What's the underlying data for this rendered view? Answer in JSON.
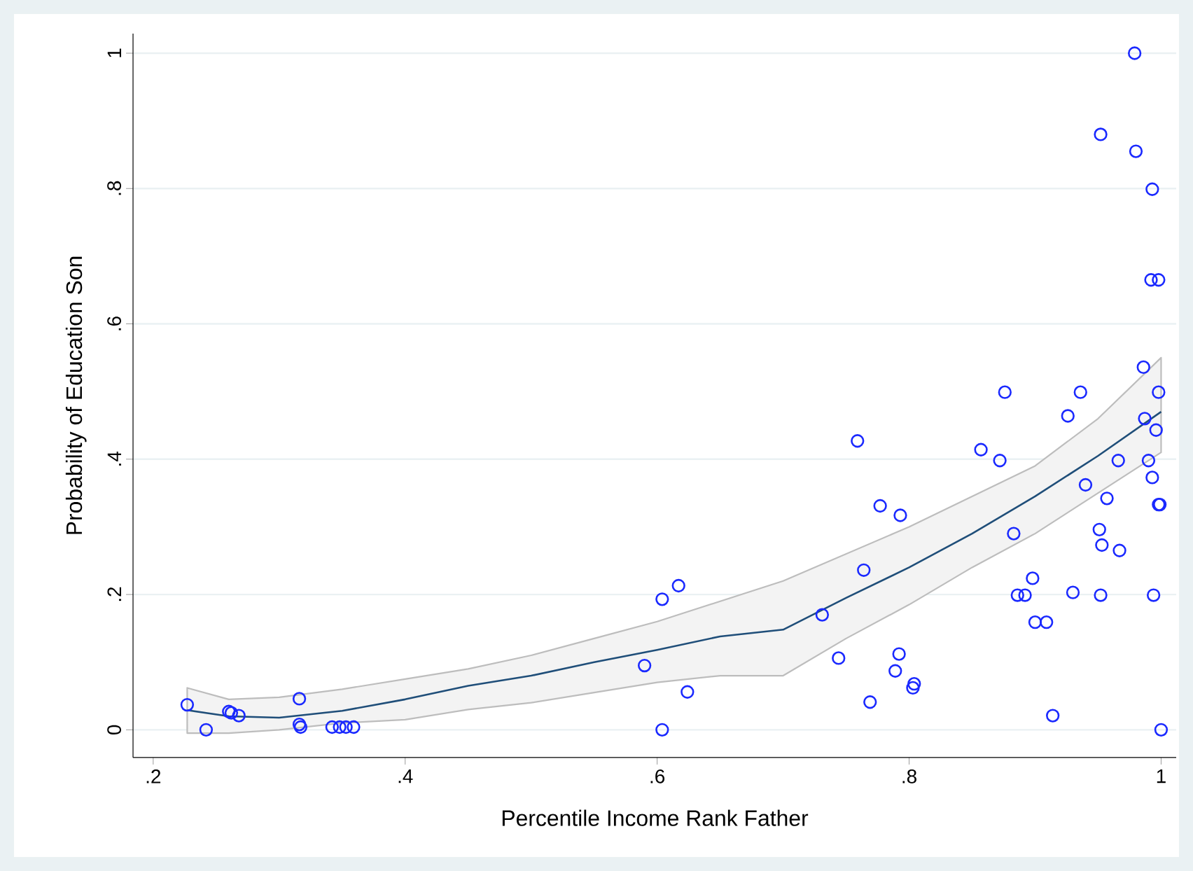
{
  "chart_data": {
    "type": "scatter",
    "xlabel": "Percentile Income Rank Father",
    "ylabel": "Probability of Education Son",
    "xlim": [
      0.184,
      1.012
    ],
    "ylim": [
      -0.041,
      1.029
    ],
    "xticks": [
      {
        "value": 0.2,
        "label": ".2"
      },
      {
        "value": 0.4,
        "label": ".4"
      },
      {
        "value": 0.6,
        "label": ".6"
      },
      {
        "value": 0.8,
        "label": ".8"
      },
      1
    ],
    "yticks": [
      0,
      {
        "value": 0.2,
        "label": ".2"
      },
      {
        "value": 0.4,
        "label": ".4"
      },
      {
        "value": 0.6,
        "label": ".6"
      },
      {
        "value": 0.8,
        "label": ".8"
      },
      1
    ],
    "grid": "y",
    "marker": "circle",
    "series": [
      {
        "color": "#1a29ff",
        "x": [
          0.227,
          0.242,
          0.26,
          0.262,
          0.268,
          0.316,
          0.316,
          0.317,
          0.342,
          0.348,
          0.353,
          0.359,
          0.759,
          0.777,
          0.793,
          0.764,
          0.617,
          0.604,
          0.731,
          0.59,
          0.744,
          0.792,
          0.789,
          0.804,
          0.803,
          0.624,
          0.769,
          0.604,
          0.857,
          0.986,
          0.876,
          0.936,
          0.998,
          0.926,
          0.987,
          0.996,
          0.872,
          0.966,
          0.99,
          0.993,
          0.94,
          0.957,
          0.998,
          0.999,
          0.883,
          0.951,
          0.953,
          0.967,
          0.898,
          0.886,
          0.892,
          0.93,
          0.952,
          0.994,
          0.9,
          0.909,
          0.914,
          1.0,
          0.979,
          0.952,
          0.98,
          0.993,
          0.992,
          0.998
        ],
        "values": [
          0.037,
          0,
          0.027,
          0.025,
          0.021,
          0.046,
          0.008,
          0.004,
          0.004,
          0.004,
          0.004,
          0.004,
          0.427,
          0.331,
          0.317,
          0.236,
          0.213,
          0.193,
          0.17,
          0.095,
          0.106,
          0.112,
          0.087,
          0.068,
          0.062,
          0.056,
          0.041,
          0,
          0.414,
          0.536,
          0.499,
          0.499,
          0.499,
          0.464,
          0.46,
          0.443,
          0.398,
          0.398,
          0.398,
          0.373,
          0.362,
          0.342,
          0.333,
          0.333,
          0.29,
          0.296,
          0.273,
          0.265,
          0.224,
          0.199,
          0.199,
          0.203,
          0.199,
          0.199,
          0.159,
          0.159,
          0.021,
          0,
          1,
          0.88,
          0.855,
          0.799,
          0.665,
          0.665
        ]
      },
      {
        "type": "line",
        "color": "#1f4e79",
        "marker": "none",
        "x": [
          0.227,
          0.26,
          0.3,
          0.35,
          0.4,
          0.45,
          0.5,
          0.55,
          0.6,
          0.65,
          0.7,
          0.75,
          0.8,
          0.85,
          0.9,
          0.95,
          1.0
        ],
        "values": [
          0.029,
          0.02,
          0.018,
          0.028,
          0.045,
          0.065,
          0.08,
          0.1,
          0.118,
          0.138,
          0.148,
          0.195,
          0.24,
          0.29,
          0.345,
          0.405,
          0.47
        ],
        "upper": [
          0.062,
          0.045,
          0.048,
          0.06,
          0.075,
          0.09,
          0.11,
          0.135,
          0.16,
          0.19,
          0.22,
          0.26,
          0.3,
          0.345,
          0.39,
          0.46,
          0.55
        ],
        "lower": [
          -0.005,
          -0.005,
          0,
          0.01,
          0.015,
          0.03,
          0.04,
          0.055,
          0.07,
          0.08,
          0.08,
          0.135,
          0.185,
          0.24,
          0.29,
          0.35,
          0.41
        ]
      }
    ]
  }
}
